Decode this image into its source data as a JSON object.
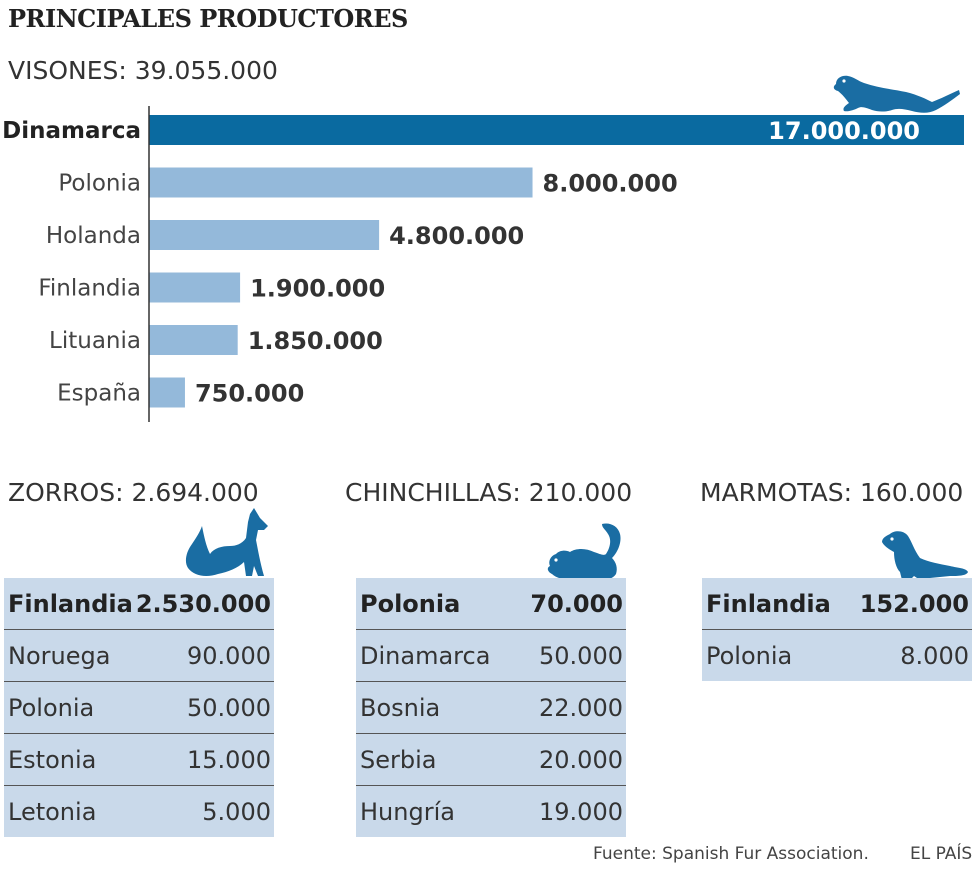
{
  "title": "PRINCIPALES PRODUCTORES",
  "colors": {
    "highlight": "#0a6aa0",
    "bar": "#94b9da",
    "table_bg": "#c9d9ea",
    "animal": "#1a6da3"
  },
  "chart_data": [
    {
      "type": "bar",
      "orientation": "horizontal",
      "title": "VISONES: 39.055.000",
      "categories": [
        "Dinamarca",
        "Polonia",
        "Holanda",
        "Finlandia",
        "Lituania",
        "España"
      ],
      "values": [
        17000000,
        8000000,
        4800000,
        1900000,
        1850000,
        750000
      ],
      "value_labels": [
        "17.000.000",
        "8.000.000",
        "4.800.000",
        "1.900.000",
        "1.850.000",
        "750.000"
      ],
      "highlight": "Dinamarca",
      "xlim": [
        0,
        17000000
      ],
      "grid": false
    },
    {
      "type": "table",
      "title": "ZORROS: 2.694.000",
      "rows": [
        [
          "Finlandia",
          "2.530.000"
        ],
        [
          "Noruega",
          "90.000"
        ],
        [
          "Polonia",
          "50.000"
        ],
        [
          "Estonia",
          "15.000"
        ],
        [
          "Letonia",
          "5.000"
        ]
      ]
    },
    {
      "type": "table",
      "title": "CHINCHILLAS: 210.000",
      "rows": [
        [
          "Polonia",
          "70.000"
        ],
        [
          "Dinamarca",
          "50.000"
        ],
        [
          "Bosnia",
          "22.000"
        ],
        [
          "Serbia",
          "20.000"
        ],
        [
          "Hungría",
          "19.000"
        ]
      ]
    },
    {
      "type": "table",
      "title": "MARMOTAS: 160.000",
      "rows": [
        [
          "Finlandia",
          "152.000"
        ],
        [
          "Polonia",
          "8.000"
        ]
      ]
    }
  ],
  "icons": [
    "mink-icon",
    "fox-icon",
    "chinchilla-icon",
    "marmot-icon"
  ],
  "footer": {
    "source": "Fuente: Spanish Fur Association.",
    "brand": "EL PAÍS"
  }
}
